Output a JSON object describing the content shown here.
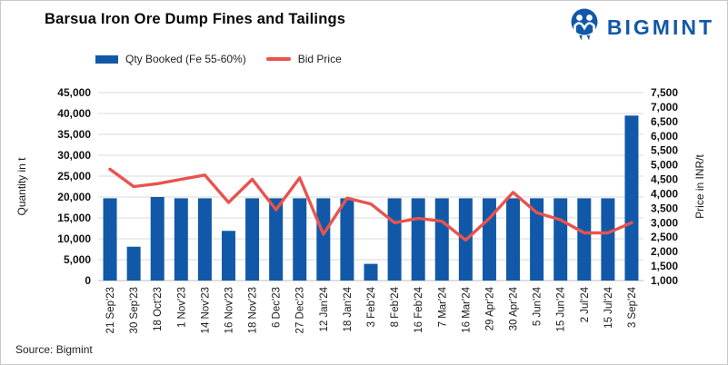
{
  "header": {
    "title": "Barsua Iron Ore Dump Fines and Tailings",
    "brand": "BIGMINT"
  },
  "legend": {
    "qty_label": "Qty Booked (Fe 55-60%)",
    "price_label": "Bid Price"
  },
  "source": "Source: Bigmint",
  "colors": {
    "bar": "#1159A8",
    "line": "#E8534E",
    "grid": "#d9d9d9",
    "axis_line": "#bdbdbd",
    "tick_text": "#111111",
    "brand_blue": "#1358A8"
  },
  "chart_data": {
    "type": "bar",
    "title": "Barsua Iron Ore Dump Fines and Tailings",
    "categories": [
      "21 Sep'23",
      "30 Sep'23",
      "18 Oct'23",
      "1 Nov'23",
      "14 Nov'23",
      "16 Nov'23",
      "18 Nov'23",
      "6 Dec'23",
      "27 Dec'23",
      "12 Jan'24",
      "18 Jan'24",
      "3 Feb'24",
      "8 Feb'24",
      "16 Feb'24",
      "7 Mar'24",
      "16 Mar'24",
      "29 Apr'24",
      "30 Apr'24",
      "5 Jun'24",
      "15 Jun'24",
      "2 Jul'24",
      "15 Jul'24",
      "3 Sep'24"
    ],
    "series": [
      {
        "name": "Qty Booked (Fe 55-60%)",
        "type": "bar",
        "axis": "left",
        "color": "#1159A8",
        "values": [
          19700,
          8100,
          20000,
          19700,
          19700,
          11900,
          19700,
          19700,
          19700,
          19700,
          19700,
          4000,
          19700,
          19700,
          19700,
          19700,
          19700,
          19700,
          19700,
          19700,
          19700,
          19700,
          39500
        ]
      },
      {
        "name": "Bid Price",
        "type": "line",
        "axis": "right",
        "color": "#E8534E",
        "values": [
          4850,
          4250,
          4350,
          4500,
          4650,
          3700,
          4500,
          3450,
          4550,
          2600,
          3850,
          3650,
          3000,
          3150,
          3050,
          2400,
          3150,
          4050,
          3350,
          3100,
          2650,
          2650,
          3000
        ]
      }
    ],
    "left_axis": {
      "label": "Quantity in t",
      "min": 0,
      "max": 45000,
      "step": 5000
    },
    "right_axis": {
      "label": "Price in INR/t",
      "min": 1000,
      "max": 7500,
      "step": 500
    },
    "grid": true,
    "legend_position": "top"
  }
}
